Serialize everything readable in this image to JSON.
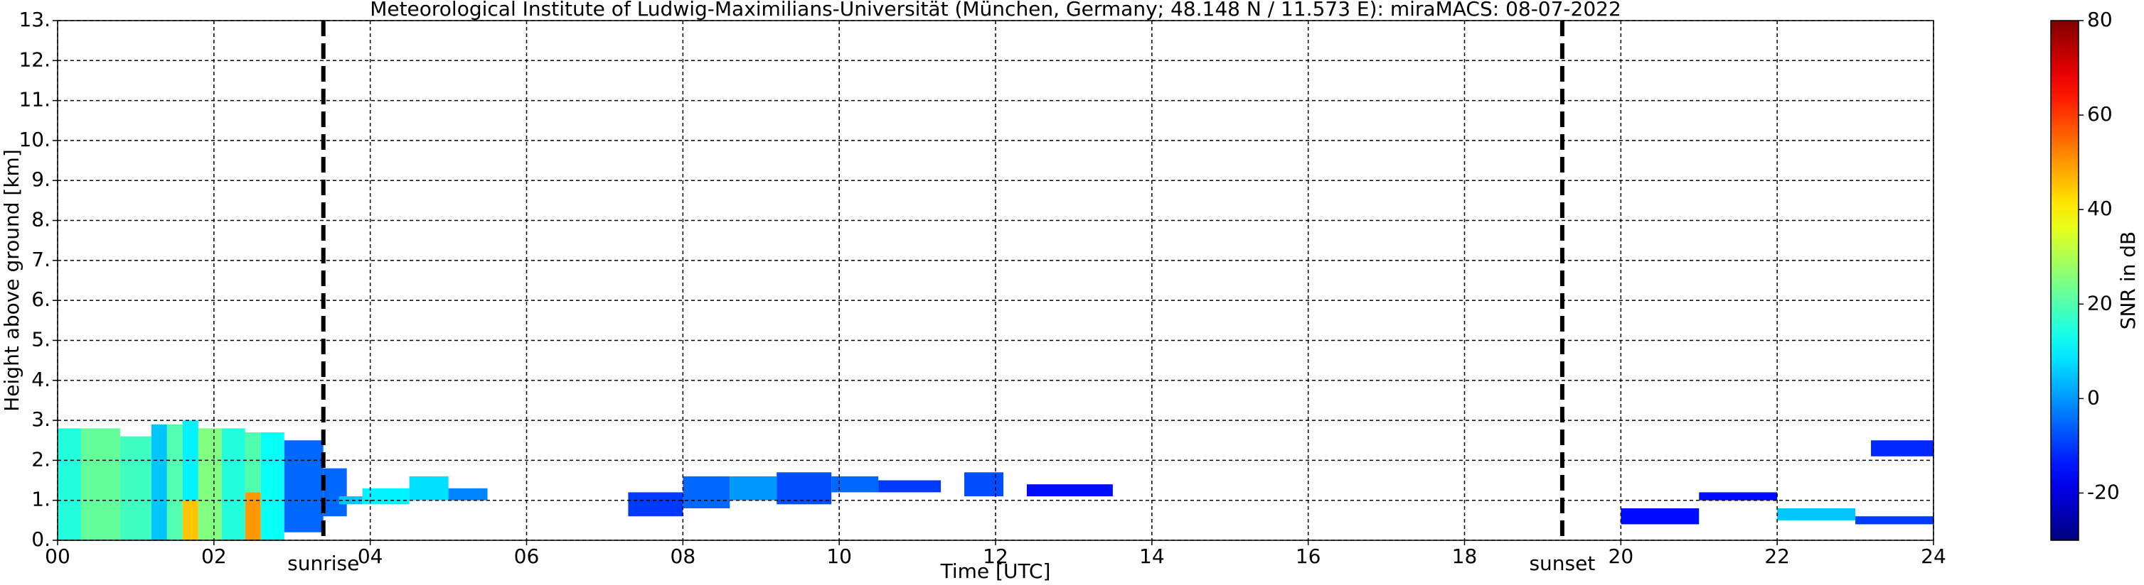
{
  "chart_data": {
    "type": "radar",
    "title": "Meteorological Institute of Ludwig-Maximilians-Universität (München, Germany; 48.148 N / 11.573 E):    miraMACS: 08-07-2022",
    "x_label": "Time [UTC]",
    "y_label": "Height above ground [km]",
    "xlim": [
      0,
      24
    ],
    "ylim": [
      0,
      13
    ],
    "xticks": [
      {
        "value": 0,
        "label": "00"
      },
      {
        "value": 2,
        "label": "02"
      },
      {
        "value": 4,
        "label": "04"
      },
      {
        "value": 6,
        "label": "06"
      },
      {
        "value": 8,
        "label": "08"
      },
      10,
      12,
      14,
      16,
      18,
      20,
      22,
      24
    ],
    "yticks": [
      {
        "value": 0,
        "label": "0."
      },
      {
        "value": 1,
        "label": "1."
      },
      {
        "value": 2,
        "label": "2."
      },
      {
        "value": 3,
        "label": "3."
      },
      {
        "value": 4,
        "label": "4."
      },
      {
        "value": 5,
        "label": "5."
      },
      {
        "value": 6,
        "label": "6."
      },
      {
        "value": 7,
        "label": "7."
      },
      {
        "value": 8,
        "label": "8."
      },
      {
        "value": 9,
        "label": "9."
      },
      {
        "value": 10,
        "label": "10."
      },
      {
        "value": 11,
        "label": "11."
      },
      {
        "value": 12,
        "label": "12."
      },
      {
        "value": 13,
        "label": "13."
      }
    ],
    "grid": true,
    "colorbar": {
      "label": "SNR in dB",
      "colormap": "jet",
      "clim": [
        -30,
        80
      ],
      "ticks": [
        -20,
        0,
        20,
        40,
        60,
        80
      ]
    },
    "vlines": [
      {
        "x": 3.4,
        "label": "sunrise"
      },
      {
        "x": 19.25,
        "label": "sunset"
      }
    ],
    "echoes": [
      [
        0,
        0.3,
        0,
        2.8,
        15
      ],
      [
        0.3,
        0.8,
        0,
        2.8,
        22
      ],
      [
        0.8,
        1.2,
        0,
        2.6,
        18
      ],
      [
        1.2,
        1.4,
        0,
        2.9,
        5
      ],
      [
        1.4,
        1.6,
        0,
        2.9,
        20
      ],
      [
        1.6,
        1.8,
        0,
        1.0,
        45
      ],
      [
        1.6,
        1.8,
        1.0,
        3.0,
        10
      ],
      [
        1.8,
        2.1,
        0,
        2.8,
        25
      ],
      [
        2.1,
        2.4,
        0,
        2.8,
        15
      ],
      [
        2.4,
        2.6,
        0,
        1.2,
        50
      ],
      [
        2.4,
        2.6,
        1.2,
        2.7,
        20
      ],
      [
        2.6,
        2.9,
        0,
        2.7,
        12
      ],
      [
        2.9,
        3.4,
        0.2,
        2.5,
        -5
      ],
      [
        3.4,
        3.7,
        0.6,
        1.8,
        -5
      ],
      [
        3.6,
        3.9,
        0.9,
        1.1,
        5
      ],
      [
        3.9,
        4.5,
        0.9,
        1.3,
        10
      ],
      [
        4.5,
        5.0,
        1.0,
        1.6,
        8
      ],
      [
        5.0,
        5.5,
        1.0,
        1.3,
        -2
      ],
      [
        7.3,
        8.0,
        0.6,
        1.2,
        -10
      ],
      [
        8.0,
        8.6,
        0.8,
        1.6,
        -5
      ],
      [
        8.6,
        9.2,
        1.0,
        1.6,
        0
      ],
      [
        9.2,
        9.9,
        0.9,
        1.7,
        -8
      ],
      [
        9.9,
        10.5,
        1.2,
        1.6,
        -5
      ],
      [
        10.5,
        11.3,
        1.2,
        1.5,
        -10
      ],
      [
        11.6,
        12.1,
        1.1,
        1.7,
        -8
      ],
      [
        12.4,
        13.5,
        1.1,
        1.4,
        -15
      ],
      [
        20,
        21,
        0.4,
        0.8,
        -15
      ],
      [
        21,
        22,
        1.0,
        1.2,
        -15
      ],
      [
        22,
        23,
        0.5,
        0.8,
        5
      ],
      [
        23,
        24,
        0.4,
        0.6,
        -10
      ],
      [
        23.2,
        24,
        2.1,
        2.5,
        -12
      ]
    ]
  }
}
